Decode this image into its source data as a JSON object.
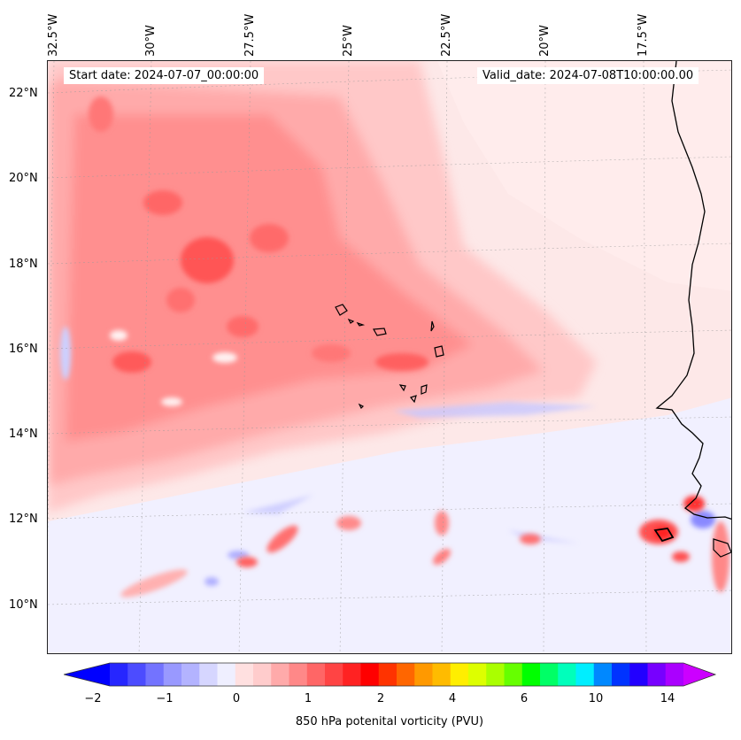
{
  "header": {
    "start_date": "Start date: 2024-07-07_00:00:00",
    "valid_date": "Valid_date: 2024-07-08T10:00:00.00"
  },
  "axes": {
    "longitude_labels": [
      "32.5°W",
      "30°W",
      "27.5°W",
      "25°W",
      "22.5°W",
      "20°W",
      "17.5°W"
    ],
    "latitude_labels": [
      "22°N",
      "20°N",
      "18°N",
      "16°N",
      "14°N",
      "12°N",
      "10°N"
    ]
  },
  "colorbar": {
    "label": "850 hPa potenital vorticity (PVU)",
    "tick_labels": [
      "−2",
      "−1",
      "0",
      "1",
      "2",
      "4",
      "6",
      "10",
      "14"
    ],
    "colors": [
      "#0000ff",
      "#2626ff",
      "#4c4cff",
      "#7373ff",
      "#9999ff",
      "#b3b3ff",
      "#d6d6ff",
      "#efefff",
      "#ffe0e0",
      "#ffcccc",
      "#ffaaaa",
      "#ff8888",
      "#ff6666",
      "#ff4444",
      "#ff2222",
      "#ff0000",
      "#ff3300",
      "#ff6600",
      "#ff9900",
      "#ffbb00",
      "#ffee00",
      "#ddff00",
      "#aaff00",
      "#66ff00",
      "#00ff00",
      "#00ff66",
      "#00ffbb",
      "#00eeff",
      "#0088ff",
      "#0033ff",
      "#2200ff",
      "#7700ff",
      "#aa00ff",
      "#cc00ff"
    ]
  },
  "map": {
    "background": "#fdeaea",
    "coastline_color": "#000000",
    "grid": true
  }
}
